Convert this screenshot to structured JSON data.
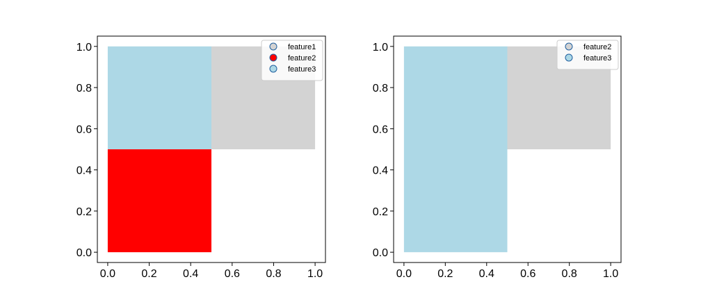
{
  "chart_data": [
    {
      "type": "heatmap",
      "title": "",
      "xlabel": "",
      "ylabel": "",
      "xlim": [
        -0.05,
        1.05
      ],
      "ylim": [
        -0.05,
        1.05
      ],
      "xticks": [
        "0.0",
        "0.2",
        "0.4",
        "0.6",
        "0.8",
        "1.0"
      ],
      "yticks": [
        "0.0",
        "0.2",
        "0.4",
        "0.6",
        "0.8",
        "1.0"
      ],
      "grid": false,
      "legend_position": "top-right",
      "cells": [
        {
          "x": [
            0.0,
            0.5
          ],
          "y": [
            0.0,
            0.5
          ],
          "color": "#ff0000"
        },
        {
          "x": [
            0.0,
            0.5
          ],
          "y": [
            0.5,
            1.0
          ],
          "color": "#add8e6"
        },
        {
          "x": [
            0.5,
            1.0
          ],
          "y": [
            0.5,
            1.0
          ],
          "color": "#d3d3d3"
        }
      ],
      "legend": [
        {
          "label": "feature1",
          "color": "#d3d3d3"
        },
        {
          "label": "feature2",
          "color": "#ff0000"
        },
        {
          "label": "feature3",
          "color": "#add8e6"
        }
      ]
    },
    {
      "type": "heatmap",
      "title": "",
      "xlabel": "",
      "ylabel": "",
      "xlim": [
        -0.05,
        1.05
      ],
      "ylim": [
        -0.05,
        1.05
      ],
      "xticks": [
        "0.0",
        "0.2",
        "0.4",
        "0.6",
        "0.8",
        "1.0"
      ],
      "yticks": [
        "0.0",
        "0.2",
        "0.4",
        "0.6",
        "0.8",
        "1.0"
      ],
      "grid": false,
      "legend_position": "top-right",
      "cells": [
        {
          "x": [
            0.0,
            0.5
          ],
          "y": [
            0.0,
            1.0
          ],
          "color": "#add8e6"
        },
        {
          "x": [
            0.5,
            1.0
          ],
          "y": [
            0.5,
            1.0
          ],
          "color": "#d3d3d3"
        }
      ],
      "legend": [
        {
          "label": "feature2",
          "color": "#d3d3d3"
        },
        {
          "label": "feature3",
          "color": "#add8e6"
        }
      ]
    }
  ]
}
